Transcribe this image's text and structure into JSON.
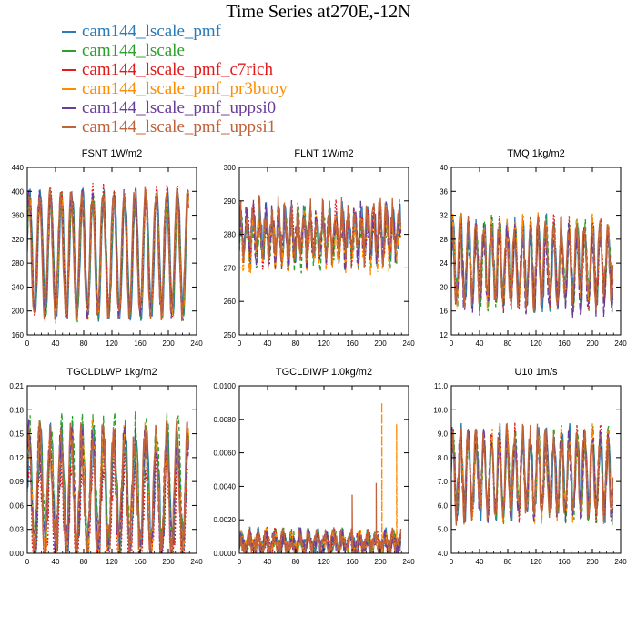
{
  "figure": {
    "title": "Time Series at270E,-12N",
    "legend": [
      {
        "name": "cam144_lscale_pmf",
        "color": "#2b7bb9",
        "dash": "solid"
      },
      {
        "name": "cam144_lscale",
        "color": "#2ca02c",
        "dash": "dash"
      },
      {
        "name": "cam144_lscale_pmf_c7rich",
        "color": "#e31a1c",
        "dash": "dot"
      },
      {
        "name": "cam144_lscale_pmf_pr3buoy",
        "color": "#ff8c00",
        "dash": "dashdot"
      },
      {
        "name": "cam144_lscale_pmf_uppsi0",
        "color": "#6a3d9a",
        "dash": "longdash"
      },
      {
        "name": "cam144_lscale_pmf_uppsi1",
        "color": "#c0623a",
        "dash": "solid"
      }
    ]
  },
  "chart_data": [
    {
      "type": "line",
      "title": "FSNT   1W/m2",
      "x_ticks": [
        "0",
        "40",
        "80",
        "120",
        "160",
        "200",
        "240"
      ],
      "xlim": [
        0,
        240
      ],
      "y_ticks": [
        "160",
        "200",
        "240",
        "280",
        "320",
        "360",
        "400",
        "440"
      ],
      "ylim": [
        160,
        440
      ],
      "n": 230,
      "period": 15,
      "center": 295,
      "amp": 100,
      "noise": 14,
      "base_offset": [
        0,
        0,
        6,
        -3,
        0,
        0
      ],
      "spikes": []
    },
    {
      "type": "line",
      "title": "FLNT   1W/m2",
      "x_ticks": [
        "0",
        "40",
        "80",
        "120",
        "160",
        "200",
        "240"
      ],
      "xlim": [
        0,
        240
      ],
      "y_ticks": [
        "250",
        "260",
        "270",
        "280",
        "290",
        "300"
      ],
      "ylim": [
        250,
        300
      ],
      "n": 230,
      "period": 9,
      "center": 280,
      "amp": 6,
      "noise": 5,
      "base_offset": [
        0,
        -1,
        0,
        -2,
        0,
        1
      ],
      "spikes": []
    },
    {
      "type": "line",
      "title": "TMQ   1kg/m2",
      "x_ticks": [
        "0",
        "40",
        "80",
        "120",
        "160",
        "200",
        "240"
      ],
      "xlim": [
        0,
        240
      ],
      "y_ticks": [
        "12",
        "16",
        "20",
        "24",
        "28",
        "32",
        "36",
        "40"
      ],
      "ylim": [
        12,
        40
      ],
      "n": 230,
      "period": 11,
      "center": 24,
      "amp": 6,
      "noise": 2.5,
      "base_offset": [
        0,
        0,
        0,
        0,
        -1,
        0
      ],
      "spikes": []
    },
    {
      "type": "line",
      "title": "TGCLDLWP   1kg/m2",
      "x_ticks": [
        "0",
        "40",
        "80",
        "120",
        "160",
        "200",
        "240"
      ],
      "xlim": [
        0,
        240
      ],
      "y_ticks": [
        "0.00",
        "0.03",
        "0.06",
        "0.09",
        "0.12",
        "0.15",
        "0.18",
        "0.21"
      ],
      "ylim": [
        0,
        0.21
      ],
      "n": 230,
      "period": 15,
      "center": 0.075,
      "amp": 0.07,
      "noise": 0.025,
      "base_offset": [
        0,
        0.01,
        -0.035,
        0,
        0,
        0
      ],
      "spikes": []
    },
    {
      "type": "line",
      "title": "TGCLDIWP   1.0kg/m2",
      "x_ticks": [
        "0",
        "40",
        "80",
        "120",
        "160",
        "200",
        "240"
      ],
      "xlim": [
        0,
        240
      ],
      "y_ticks": [
        "0.0000",
        "0.0020",
        "0.0040",
        "0.0060",
        "0.0080",
        "0.0100"
      ],
      "ylim": [
        0,
        0.01
      ],
      "n": 230,
      "period": 12,
      "center": 0.0006,
      "amp": 0.0004,
      "noise": 0.0006,
      "base_offset": [
        0,
        0,
        0,
        0,
        0,
        0
      ],
      "spikes": [
        {
          "series": 3,
          "x": 202,
          "y": 0.009
        },
        {
          "series": 3,
          "x": 223,
          "y": 0.0077
        },
        {
          "series": 5,
          "x": 160,
          "y": 0.0035
        },
        {
          "series": 5,
          "x": 194,
          "y": 0.0042
        }
      ]
    },
    {
      "type": "line",
      "title": "U10   1m/s",
      "x_ticks": [
        "0",
        "40",
        "80",
        "120",
        "160",
        "200",
        "240"
      ],
      "xlim": [
        0,
        240
      ],
      "y_ticks": [
        "4.0",
        "5.0",
        "6.0",
        "7.0",
        "8.0",
        "9.0",
        "10.0",
        "11.0"
      ],
      "ylim": [
        4,
        11
      ],
      "n": 230,
      "period": 11,
      "center": 7.3,
      "amp": 1.6,
      "noise": 0.6,
      "base_offset": [
        0,
        0,
        0,
        0,
        0,
        0
      ],
      "spikes": []
    }
  ]
}
